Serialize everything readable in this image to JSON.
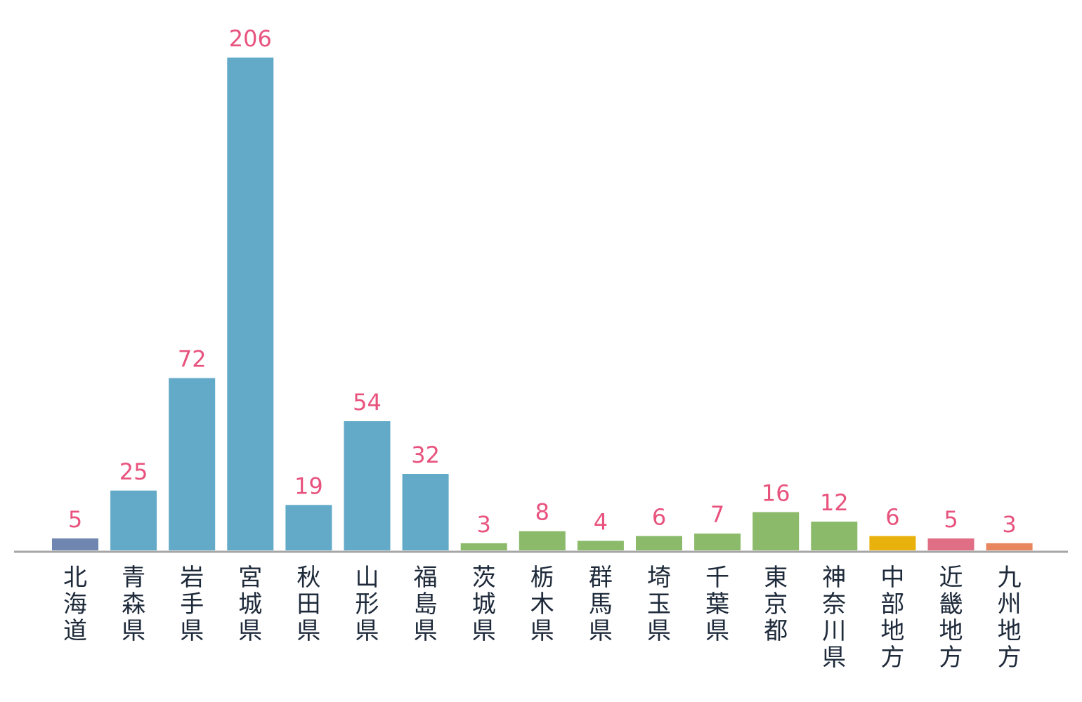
{
  "chart_data": {
    "type": "bar",
    "title": "",
    "xlabel": "",
    "ylabel": "",
    "ylim": [
      0,
      206
    ],
    "grid": false,
    "legend": "none",
    "categories": [
      "北海道",
      "青森県",
      "岩手県",
      "宮城県",
      "秋田県",
      "山形県",
      "福島県",
      "茨城県",
      "栃木県",
      "群馬県",
      "埼玉県",
      "千葉県",
      "東京都",
      "神奈川県",
      "中部地方",
      "近畿地方",
      "九州地方"
    ],
    "values": [
      5,
      25,
      72,
      206,
      19,
      54,
      32,
      3,
      8,
      4,
      6,
      7,
      16,
      12,
      6,
      5,
      3
    ],
    "bar_colors": [
      "#6f87b0",
      "#62aac8",
      "#62aac8",
      "#62aac8",
      "#62aac8",
      "#62aac8",
      "#62aac8",
      "#8aba6a",
      "#8aba6a",
      "#8aba6a",
      "#8aba6a",
      "#8aba6a",
      "#8aba6a",
      "#8aba6a",
      "#e8b10c",
      "#e06f85",
      "#e8875f"
    ],
    "label_color": "#e8537e",
    "axis_color": "#a6a6a6",
    "text_color": "#1e2a3a"
  }
}
